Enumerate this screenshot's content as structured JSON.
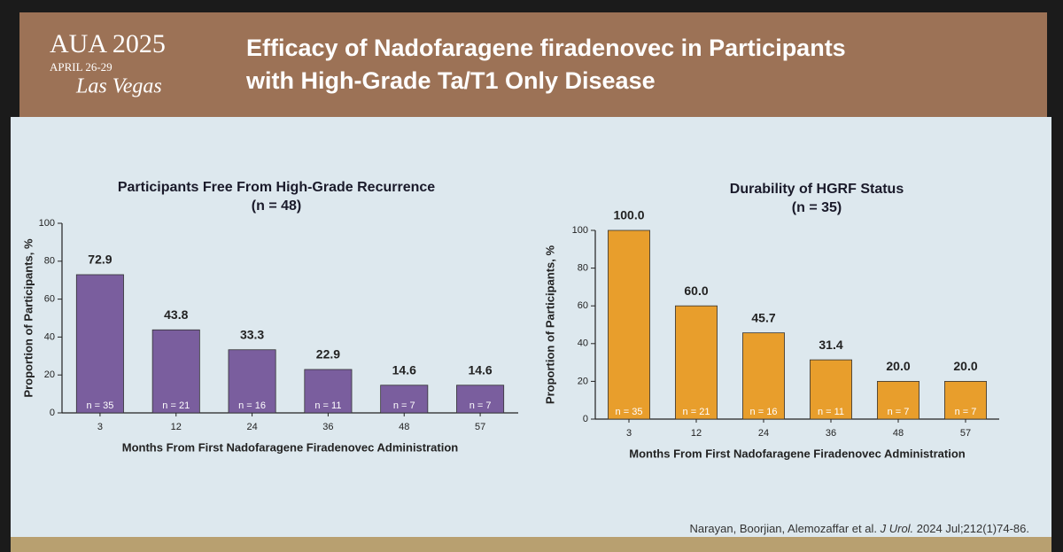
{
  "header": {
    "logo": {
      "name": "AUA 2025",
      "dates": "APRIL 26-29",
      "city": "Las Vegas"
    },
    "title_lines": [
      "Efficacy of Nadofaragene firadenovec in Participants",
      "with High-Grade Ta/T1 Only Disease"
    ]
  },
  "chart_data": [
    {
      "type": "bar",
      "title": "Participants Free From High-Grade Recurrence",
      "subtitle": "(n = 48)",
      "y_label": "Proportion of Participants, %",
      "x_label": "Months From First Nadofaragene Firadenovec Administration",
      "categories": [
        "3",
        "12",
        "24",
        "36",
        "48",
        "57"
      ],
      "values": [
        72.9,
        43.8,
        33.3,
        22.9,
        14.6,
        14.6
      ],
      "n_labels": [
        "n = 35",
        "n = 21",
        "n = 16",
        "n = 11",
        "n = 7",
        "n = 7"
      ],
      "color": "#7a5e9e",
      "ylim": [
        0,
        100
      ],
      "yticks": [
        0,
        20,
        40,
        60,
        80,
        100
      ]
    },
    {
      "type": "bar",
      "title": "Durability of HGRF Status",
      "subtitle": "(n = 35)",
      "y_label": "Proportion of Participants, %",
      "x_label": "Months From First Nadofaragene Firadenovec Administration",
      "categories": [
        "3",
        "12",
        "24",
        "36",
        "48",
        "57"
      ],
      "values": [
        100,
        60,
        45.7,
        31.4,
        20,
        20
      ],
      "value_labels": [
        "100.0",
        "60.0",
        "45.7",
        "31.4",
        "20.0",
        "20.0"
      ],
      "n_labels": [
        "n = 35",
        "n = 21",
        "n = 16",
        "n = 11",
        "n = 7",
        "n = 7"
      ],
      "color": "#e89e2c",
      "ylim": [
        0,
        100
      ],
      "yticks": [
        0,
        20,
        40,
        60,
        80,
        100
      ]
    }
  ],
  "citation": {
    "authors": "Narayan, Boorjian, Alemozaffar et al.",
    "journal": "J Urol.",
    "details": "2024 Jul;212(1)74-86."
  }
}
